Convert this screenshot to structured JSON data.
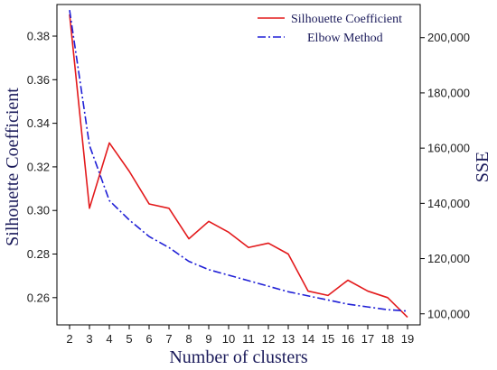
{
  "chart_data": {
    "type": "line",
    "xlabel": "Number of clusters",
    "ylabel_left": "Silhouette Coefficient",
    "ylabel_right": "SSE",
    "x": [
      2,
      3,
      4,
      5,
      6,
      7,
      8,
      9,
      10,
      11,
      12,
      13,
      14,
      15,
      16,
      17,
      18,
      19
    ],
    "ylim_left": [
      0.2475,
      0.3945
    ],
    "ylim_right": [
      96000,
      212000
    ],
    "yticks_left": [
      0.26,
      0.28,
      0.3,
      0.32,
      0.34,
      0.36,
      0.38
    ],
    "ytick_labels_left": [
      "0.26",
      "0.28",
      "0.30",
      "0.32",
      "0.34",
      "0.36",
      "0.38"
    ],
    "yticks_right": [
      100000,
      120000,
      140000,
      160000,
      180000,
      200000
    ],
    "ytick_labels_right": [
      "100,000",
      "120,000",
      "140,000",
      "160,000",
      "180,000",
      "200,000"
    ],
    "series": [
      {
        "name": "Silhouette Coefficient",
        "axis": "left",
        "color": "#e31a1c",
        "style": "solid",
        "values": [
          0.39,
          0.301,
          0.331,
          0.318,
          0.303,
          0.301,
          0.287,
          0.295,
          0.29,
          0.283,
          0.285,
          0.28,
          0.263,
          0.261,
          0.268,
          0.263,
          0.26,
          0.251
        ]
      },
      {
        "name": "Elbow Method",
        "axis": "right",
        "color": "#1f1fd6",
        "style": "dashdot",
        "values": [
          210000,
          161000,
          141000,
          134000,
          128000,
          124000,
          119000,
          116000,
          114000,
          112000,
          110000,
          108000,
          106500,
          105000,
          103500,
          102500,
          101500,
          101000
        ]
      }
    ],
    "legend": "top-right",
    "grid": false
  }
}
